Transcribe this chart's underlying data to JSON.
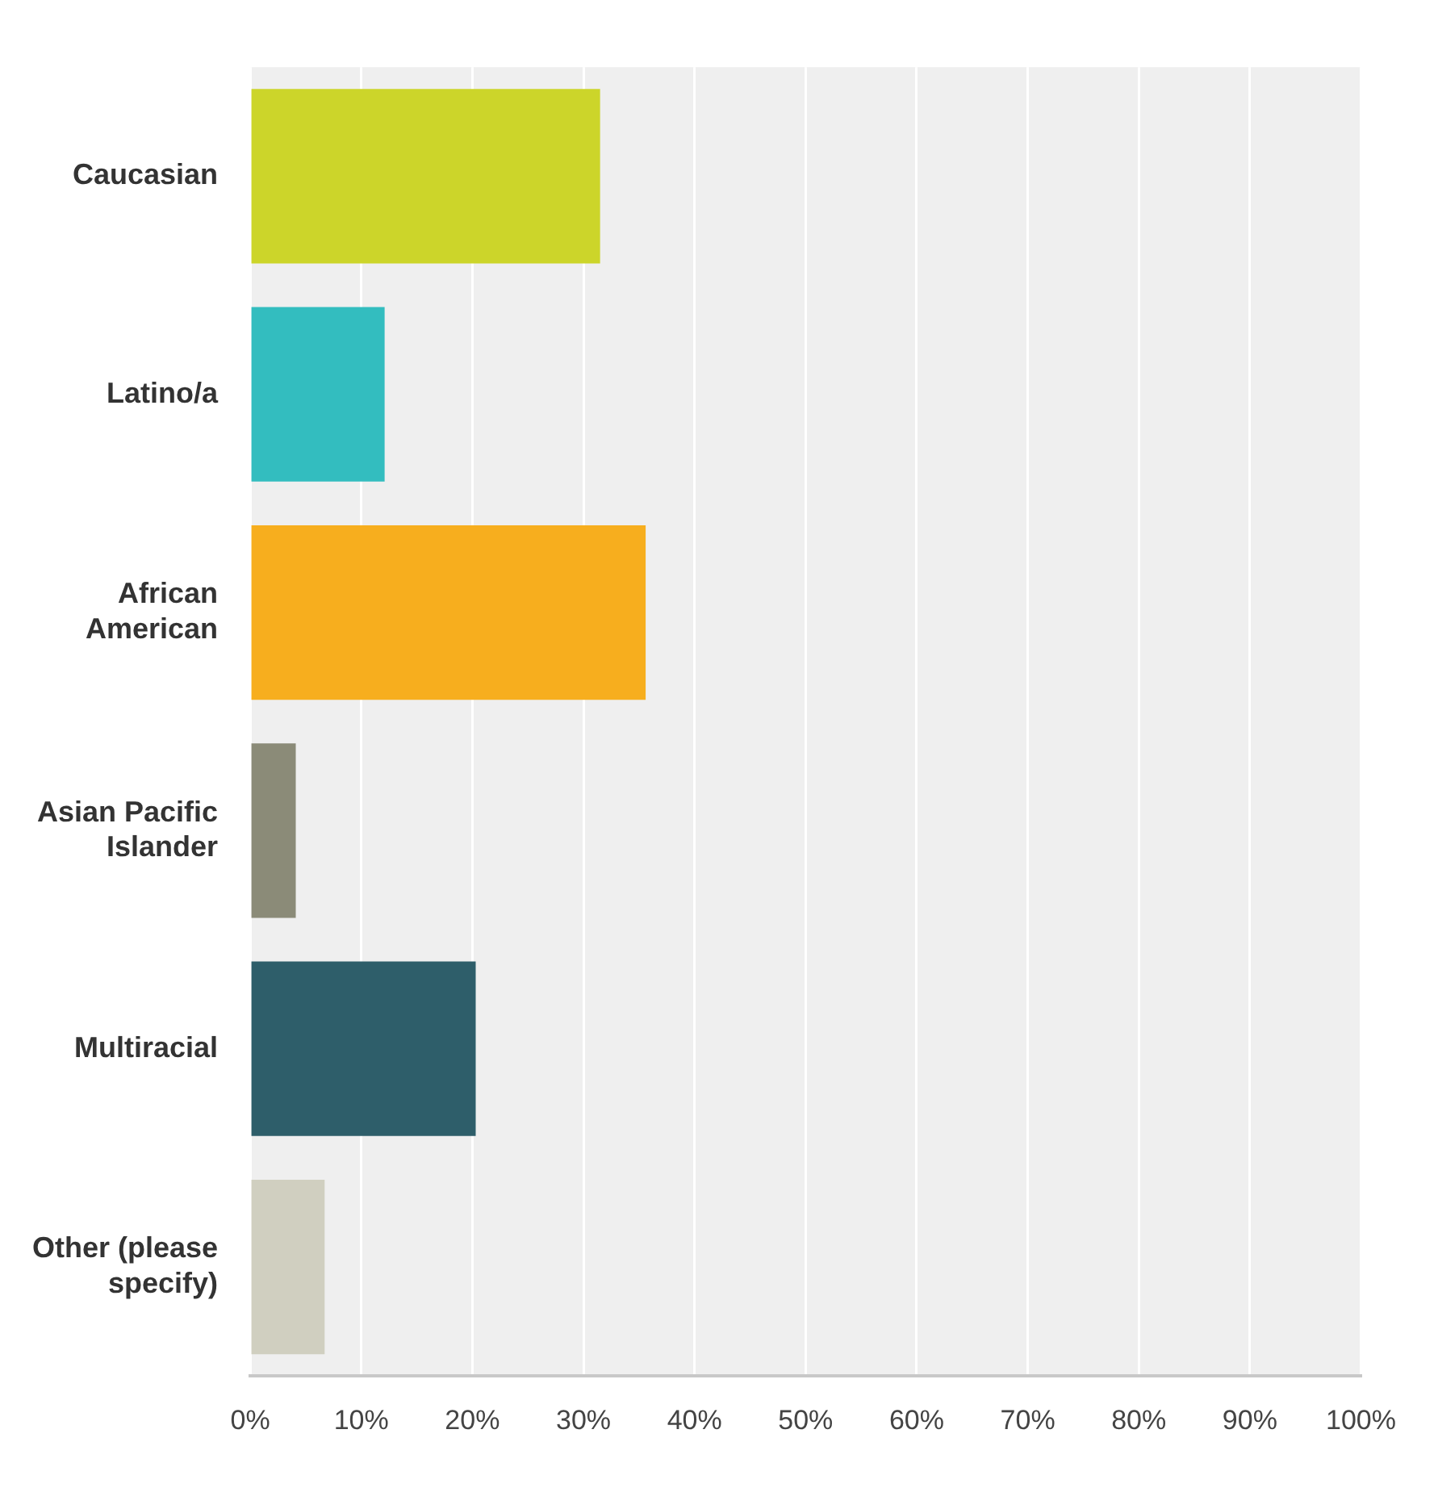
{
  "chart_data": {
    "type": "bar",
    "orientation": "horizontal",
    "categories": [
      "Caucasian",
      "Latino/a",
      "African American",
      "Asian Pacific Islander",
      "Multiracial",
      "Other (please specify)"
    ],
    "values": [
      31.5,
      12.1,
      35.6,
      4.1,
      20.3,
      6.7
    ],
    "colors": [
      "#ccd52a",
      "#33bdbf",
      "#f7ae1e",
      "#8b8b78",
      "#2e5e6a",
      "#d0cfc0"
    ],
    "xlim": [
      0,
      100
    ],
    "xticks": [
      {
        "value": 0,
        "label": "0%"
      },
      {
        "value": 10,
        "label": "10%"
      },
      {
        "value": 20,
        "label": "20%"
      },
      {
        "value": 30,
        "label": "30%"
      },
      {
        "value": 40,
        "label": "40%"
      },
      {
        "value": 50,
        "label": "50%"
      },
      {
        "value": 60,
        "label": "60%"
      },
      {
        "value": 70,
        "label": "70%"
      },
      {
        "value": 80,
        "label": "80%"
      },
      {
        "value": 90,
        "label": "90%"
      },
      {
        "value": 100,
        "label": "100%"
      }
    ],
    "grid": "x",
    "legend": false
  }
}
